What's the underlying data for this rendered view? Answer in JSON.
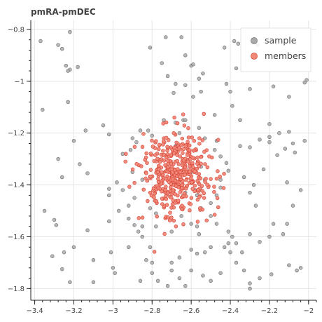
{
  "chart_data": {
    "type": "scatter",
    "title": "pmRA-pmDEC",
    "xlabel": "",
    "ylabel": "",
    "xlim": [
      -3.42,
      -1.96
    ],
    "ylim": [
      -1.845,
      -0.765
    ],
    "x_ticks": [
      -3.4,
      -3.2,
      -3,
      -2.8,
      -2.6,
      -2.4,
      -2.2,
      -2
    ],
    "y_ticks": [
      -0.8,
      -1,
      -1.2,
      -1.4,
      -1.6,
      -1.8
    ],
    "x_tick_labels": [
      "−3.4",
      "−3.2",
      "−3",
      "−2.8",
      "−2.6",
      "−2.4",
      "−2.2",
      "−2"
    ],
    "y_tick_labels": [
      "−0.8",
      "−1",
      "−1.2",
      "−1.4",
      "−1.6",
      "−1.8"
    ],
    "grid": true,
    "legend_position": "top-right",
    "series": [
      {
        "name": "sample",
        "color": "#aaaaaa",
        "edge_color": "#777777",
        "points": [
          [
            -3.37,
            -0.845
          ],
          [
            -3.28,
            -0.86
          ],
          [
            -3.26,
            -0.875
          ],
          [
            -3.22,
            -0.81
          ],
          [
            -3.24,
            -0.94
          ],
          [
            -3.22,
            -0.955
          ],
          [
            -3.18,
            -0.945
          ],
          [
            -3.23,
            -0.96
          ],
          [
            -3.36,
            -1.11
          ],
          [
            -3.23,
            -1.08
          ],
          [
            -3.14,
            -1.19
          ],
          [
            -3.05,
            -1.17
          ],
          [
            -3.02,
            -1.205
          ],
          [
            -3.2,
            -1.23
          ],
          [
            -3.28,
            -1.3
          ],
          [
            -3.17,
            -1.32
          ],
          [
            -3.13,
            -1.355
          ],
          [
            -3.26,
            -1.37
          ],
          [
            -3.02,
            -1.415
          ],
          [
            -3.02,
            -1.44
          ],
          [
            -3.35,
            -1.5
          ],
          [
            -3.3,
            -1.535
          ],
          [
            -3.29,
            -1.555
          ],
          [
            -3.13,
            -1.575
          ],
          [
            -3.02,
            -1.54
          ],
          [
            -2.97,
            -1.5
          ],
          [
            -2.92,
            -1.48
          ],
          [
            -2.89,
            -1.45
          ],
          [
            -2.92,
            -1.53
          ],
          [
            -2.89,
            -1.555
          ],
          [
            -3.31,
            -1.675
          ],
          [
            -3.25,
            -1.66
          ],
          [
            -3.2,
            -1.64
          ],
          [
            -3.1,
            -1.69
          ],
          [
            -3.01,
            -1.66
          ],
          [
            -3.26,
            -1.725
          ],
          [
            -3.22,
            -1.775
          ],
          [
            -3.1,
            -1.775
          ],
          [
            -3,
            -1.72
          ],
          [
            -2.99,
            -1.74
          ],
          [
            -2.86,
            -1.77
          ],
          [
            -2.8,
            -1.7
          ],
          [
            -2.81,
            -1.64
          ],
          [
            -2.92,
            -1.64
          ],
          [
            -2.87,
            -1.58
          ],
          [
            -2.81,
            -1.49
          ],
          [
            -2.78,
            -1.51
          ],
          [
            -2.98,
            -1.39
          ],
          [
            -2.91,
            -1.265
          ],
          [
            -2.88,
            -1.235
          ],
          [
            -2.86,
            -1.19
          ],
          [
            -2.82,
            -1.19
          ],
          [
            -2.81,
            -0.87
          ],
          [
            -2.8,
            -1.21
          ],
          [
            -2.74,
            -1.15
          ],
          [
            -2.68,
            -1.16
          ],
          [
            -2.64,
            -1.15
          ],
          [
            -2.56,
            -1.18
          ],
          [
            -2.53,
            -1.22
          ],
          [
            -2.47,
            -1.23
          ],
          [
            -2.48,
            -1.265
          ],
          [
            -2.45,
            -1.29
          ],
          [
            -2.42,
            -1.315
          ],
          [
            -2.41,
            -1.345
          ],
          [
            -2.45,
            -1.38
          ],
          [
            -2.45,
            -1.41
          ],
          [
            -2.47,
            -1.44
          ],
          [
            -2.5,
            -1.47
          ],
          [
            -2.55,
            -1.49
          ],
          [
            -2.5,
            -1.52
          ],
          [
            -2.47,
            -1.55
          ],
          [
            -2.57,
            -1.56
          ],
          [
            -2.56,
            -1.59
          ],
          [
            -2.5,
            -1.64
          ],
          [
            -2.43,
            -1.64
          ],
          [
            -2.39,
            -1.6
          ],
          [
            -2.41,
            -1.58
          ],
          [
            -2.37,
            -1.625
          ],
          [
            -2.34,
            -1.66
          ],
          [
            -2.3,
            -1.59
          ],
          [
            -2.25,
            -1.62
          ],
          [
            -2.2,
            -1.6
          ],
          [
            -2.18,
            -1.55
          ],
          [
            -2.13,
            -1.59
          ],
          [
            -2.11,
            -1.55
          ],
          [
            -2.08,
            -1.48
          ],
          [
            -2.04,
            -1.42
          ],
          [
            -2.11,
            -1.39
          ],
          [
            -2.23,
            -1.34
          ],
          [
            -2.28,
            -1.4
          ],
          [
            -2.33,
            -1.37
          ],
          [
            -2.3,
            -1.43
          ],
          [
            -2.27,
            -1.48
          ],
          [
            -2.35,
            -1.25
          ],
          [
            -2.3,
            -1.255
          ],
          [
            -2.25,
            -1.225
          ],
          [
            -2.2,
            -1.215
          ],
          [
            -2.2,
            -1.235
          ],
          [
            -2.15,
            -1.2
          ],
          [
            -2.1,
            -1.195
          ],
          [
            -2.08,
            -1.24
          ],
          [
            -2.12,
            -1.26
          ],
          [
            -2.07,
            -1.275
          ],
          [
            -2.16,
            -1.285
          ],
          [
            -2.2,
            -1.165
          ],
          [
            -2.35,
            -1.15
          ],
          [
            -2.39,
            -1.095
          ],
          [
            -2.3,
            -1.03
          ],
          [
            -2.18,
            -1.02
          ],
          [
            -2.1,
            -1.06
          ],
          [
            -2.02,
            -1.005
          ],
          [
            -2.01,
            -0.995
          ],
          [
            -2.02,
            -1.23
          ],
          [
            -2.43,
            -0.87
          ],
          [
            -2.38,
            -0.845
          ],
          [
            -2.36,
            -0.855
          ],
          [
            -2.26,
            -0.86
          ],
          [
            -2.37,
            -0.95
          ],
          [
            -2.42,
            -1.01
          ],
          [
            -2.4,
            -1.04
          ],
          [
            -2.48,
            -1.13
          ],
          [
            -2.54,
            -0.97
          ],
          [
            -2.56,
            -0.99
          ],
          [
            -2.6,
            -0.94
          ],
          [
            -2.59,
            -0.935
          ],
          [
            -2.63,
            -0.9
          ],
          [
            -2.65,
            -0.83
          ],
          [
            -2.73,
            -0.83
          ],
          [
            -2.75,
            -0.93
          ],
          [
            -2.72,
            -0.98
          ],
          [
            -2.68,
            -1.01
          ],
          [
            -2.69,
            -1.045
          ],
          [
            -2.63,
            -1.015
          ],
          [
            -2.59,
            -1.06
          ],
          [
            -2.55,
            -1.04
          ],
          [
            -2.63,
            -1.15
          ],
          [
            -2.66,
            -1.2
          ],
          [
            -2.9,
            -1.22
          ],
          [
            -2.95,
            -1.28
          ],
          [
            -2.9,
            -1.35
          ],
          [
            -2.85,
            -1.38
          ],
          [
            -2.95,
            -1.42
          ],
          [
            -2.85,
            -1.56
          ],
          [
            -2.85,
            -1.6
          ],
          [
            -2.78,
            -1.56
          ],
          [
            -2.7,
            -1.58
          ],
          [
            -2.65,
            -1.52
          ],
          [
            -2.6,
            -1.55
          ],
          [
            -2.6,
            -1.65
          ],
          [
            -2.57,
            -1.665
          ],
          [
            -2.53,
            -1.66
          ],
          [
            -2.54,
            -1.75
          ],
          [
            -2.5,
            -1.77
          ],
          [
            -2.45,
            -1.74
          ],
          [
            -2.4,
            -1.66
          ],
          [
            -2.41,
            -1.625
          ],
          [
            -2.37,
            -1.7
          ],
          [
            -2.33,
            -1.73
          ],
          [
            -2.25,
            -1.76
          ],
          [
            -2.19,
            -1.745
          ],
          [
            -2.1,
            -1.71
          ],
          [
            -2.04,
            -1.72
          ],
          [
            -2.06,
            -1.73
          ],
          [
            -2.3,
            -1.78
          ],
          [
            -2.3,
            -1.8
          ],
          [
            -2.7,
            -1.73
          ],
          [
            -2.72,
            -1.79
          ],
          [
            -2.8,
            -1.74
          ],
          [
            -2.6,
            -1.73
          ],
          [
            -2.66,
            -1.76
          ],
          [
            -2.63,
            -1.79
          ],
          [
            -2.7,
            -1.7
          ],
          [
            -2.66,
            -1.68
          ],
          [
            -2.83,
            -1.69
          ],
          [
            -2.77,
            -1.77
          ],
          [
            -2.64,
            -1.44
          ],
          [
            -2.63,
            -1.43
          ],
          [
            -2.58,
            -1.42
          ],
          [
            -2.55,
            -1.42
          ],
          [
            -2.57,
            -1.44
          ],
          [
            -2.53,
            -1.38
          ],
          [
            -2.6,
            -1.35
          ],
          [
            -2.55,
            -1.33
          ],
          [
            -2.68,
            -1.25
          ]
        ]
      },
      {
        "name": "members",
        "color": "#f08878",
        "edge_color": "#d8483a",
        "points": []
      }
    ]
  }
}
